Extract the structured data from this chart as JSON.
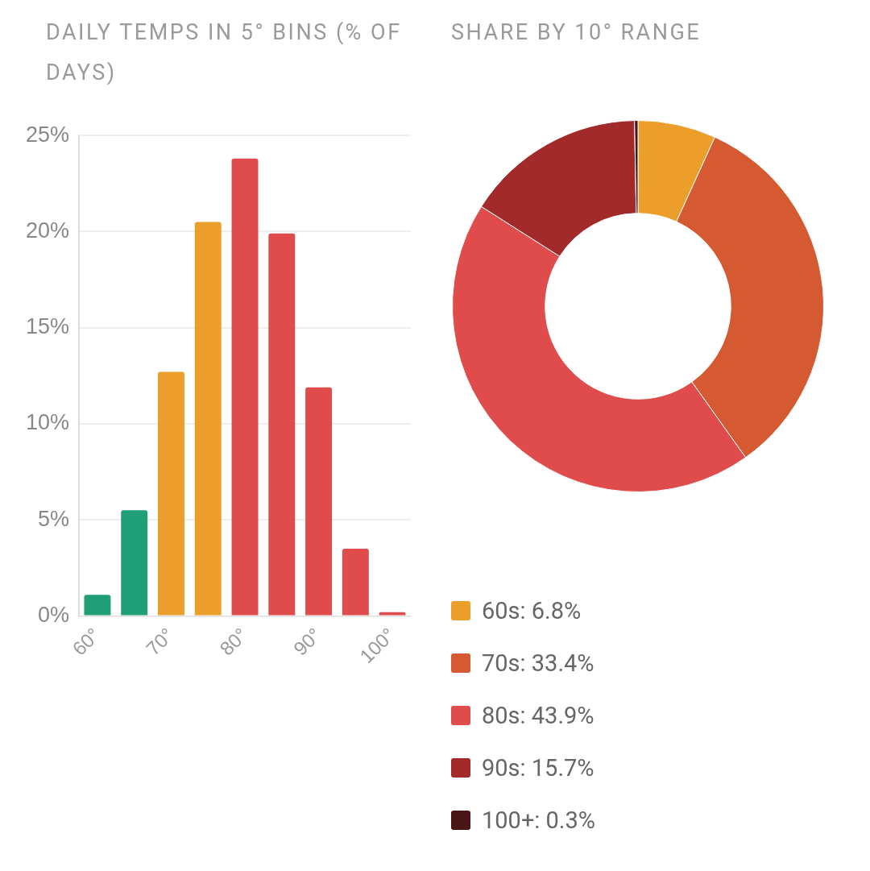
{
  "chart_data": [
    {
      "type": "bar",
      "title": "DAILY TEMPS IN 5° BINS (% OF DAYS)",
      "categories": [
        "60°",
        null,
        "70°",
        null,
        "80°",
        null,
        "90°",
        null,
        "100°"
      ],
      "values": [
        1.1,
        5.5,
        12.7,
        20.5,
        23.8,
        19.9,
        11.9,
        3.5,
        0.2
      ],
      "colors": [
        "#1f9e77",
        "#1f9e77",
        "#eb9f2a",
        "#eb9f2a",
        "#e04b4b",
        "#e04b4b",
        "#e04b4b",
        "#e04b4b",
        "#e04b4b"
      ],
      "ylim": [
        0,
        25
      ],
      "yticks": [
        {
          "value": 0,
          "label": "0%"
        },
        {
          "value": 5,
          "label": "5%"
        },
        {
          "value": 10,
          "label": "10%"
        },
        {
          "value": 15,
          "label": "15%"
        },
        {
          "value": 20,
          "label": "20%"
        },
        {
          "value": 25,
          "label": "25%"
        }
      ],
      "grid": "y",
      "legend": false
    },
    {
      "type": "donut",
      "title": "SHARE BY 10° RANGE",
      "categories": [
        "60s: 6.8%",
        "70s: 33.4%",
        "80s: 43.9%",
        "90s: 15.7%",
        "100+: 0.3%"
      ],
      "values": [
        6.8,
        33.4,
        43.9,
        15.7,
        0.3
      ],
      "colors": [
        "#eb9f2a",
        "#d65a31",
        "#e04b4b",
        "#a32a2a",
        "#4a1515"
      ],
      "legend": "bottom"
    }
  ]
}
